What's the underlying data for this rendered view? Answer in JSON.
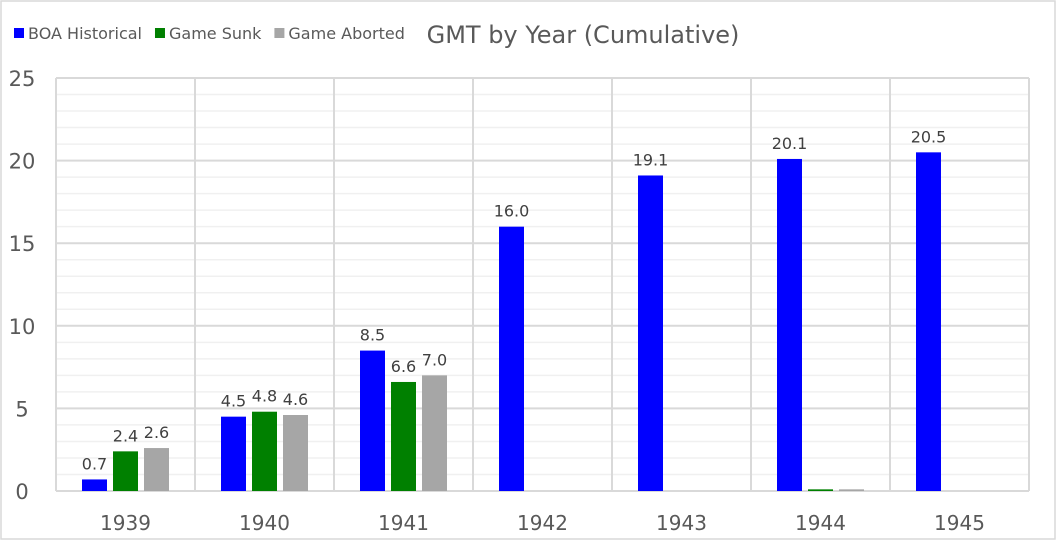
{
  "chart_data": {
    "type": "bar",
    "title": "GMT by Year (Cumulative)",
    "xlabel": "",
    "ylabel": "",
    "ylim": [
      0,
      25
    ],
    "yticks": [
      0,
      5,
      10,
      15,
      20,
      25
    ],
    "grid": true,
    "legend": "top-left",
    "categories": [
      "1939",
      "1940",
      "1941",
      "1942",
      "1943",
      "1944",
      "1945"
    ],
    "series": [
      {
        "name": "BOA Historical",
        "color": "#0000FF",
        "values": [
          0.7,
          4.5,
          8.5,
          16.0,
          19.1,
          20.1,
          20.5
        ],
        "labels": [
          "0.7",
          "4.5",
          "8.5",
          "16.0",
          "19.1",
          "20.1",
          "20.5"
        ]
      },
      {
        "name": "Game Sunk",
        "color": "#008000",
        "values": [
          2.4,
          4.8,
          6.6,
          null,
          null,
          0.1,
          null
        ],
        "labels": [
          "2.4",
          "4.8",
          "6.6",
          null,
          null,
          null,
          null
        ]
      },
      {
        "name": "Game Aborted",
        "color": "#A6A6A6",
        "values": [
          2.6,
          4.6,
          7.0,
          null,
          null,
          0.1,
          null
        ],
        "labels": [
          "2.6",
          "4.6",
          "7.0",
          null,
          null,
          null,
          null
        ]
      }
    ]
  }
}
